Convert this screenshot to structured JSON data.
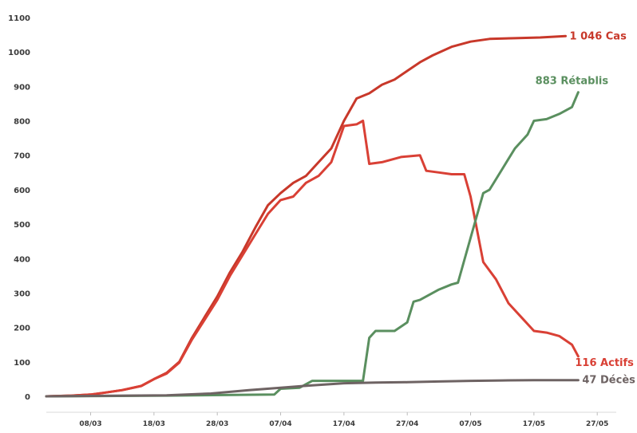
{
  "chart_data": {
    "type": "line",
    "ylim": [
      0,
      1100
    ],
    "yticks": [
      0,
      100,
      200,
      300,
      400,
      500,
      600,
      700,
      800,
      900,
      1000,
      1100
    ],
    "xticks": [
      "08/03",
      "18/03",
      "28/03",
      "07/04",
      "17/04",
      "27/04",
      "07/05",
      "17/05",
      "27/05"
    ],
    "grid": false,
    "x_start": "2020-03-01",
    "x_end": "2020-05-30",
    "series": [
      {
        "name": "Cas",
        "end_label": "1 046 Cas",
        "color": "#c8382a",
        "points": [
          [
            "2020-03-01",
            0
          ],
          [
            "2020-03-05",
            2
          ],
          [
            "2020-03-08",
            5
          ],
          [
            "2020-03-10",
            10
          ],
          [
            "2020-03-13",
            18
          ],
          [
            "2020-03-16",
            30
          ],
          [
            "2020-03-18",
            50
          ],
          [
            "2020-03-20",
            68
          ],
          [
            "2020-03-22",
            100
          ],
          [
            "2020-03-24",
            170
          ],
          [
            "2020-03-26",
            230
          ],
          [
            "2020-03-28",
            290
          ],
          [
            "2020-03-30",
            360
          ],
          [
            "2020-04-01",
            420
          ],
          [
            "2020-04-03",
            490
          ],
          [
            "2020-04-05",
            555
          ],
          [
            "2020-04-07",
            590
          ],
          [
            "2020-04-09",
            620
          ],
          [
            "2020-04-11",
            640
          ],
          [
            "2020-04-13",
            680
          ],
          [
            "2020-04-15",
            720
          ],
          [
            "2020-04-17",
            800
          ],
          [
            "2020-04-19",
            865
          ],
          [
            "2020-04-21",
            880
          ],
          [
            "2020-04-23",
            905
          ],
          [
            "2020-04-25",
            920
          ],
          [
            "2020-04-27",
            945
          ],
          [
            "2020-04-29",
            970
          ],
          [
            "2020-05-01",
            990
          ],
          [
            "2020-05-04",
            1015
          ],
          [
            "2020-05-07",
            1030
          ],
          [
            "2020-05-10",
            1038
          ],
          [
            "2020-05-14",
            1040
          ],
          [
            "2020-05-18",
            1042
          ],
          [
            "2020-05-22",
            1046
          ]
        ]
      },
      {
        "name": "Actifs",
        "end_label": "116 Actifs",
        "color": "#d94035",
        "points": [
          [
            "2020-03-01",
            0
          ],
          [
            "2020-03-05",
            2
          ],
          [
            "2020-03-08",
            5
          ],
          [
            "2020-03-10",
            10
          ],
          [
            "2020-03-13",
            18
          ],
          [
            "2020-03-16",
            30
          ],
          [
            "2020-03-18",
            50
          ],
          [
            "2020-03-20",
            66
          ],
          [
            "2020-03-22",
            98
          ],
          [
            "2020-03-24",
            165
          ],
          [
            "2020-03-26",
            222
          ],
          [
            "2020-03-28",
            280
          ],
          [
            "2020-03-30",
            350
          ],
          [
            "2020-04-01",
            410
          ],
          [
            "2020-04-03",
            470
          ],
          [
            "2020-04-05",
            530
          ],
          [
            "2020-04-07",
            570
          ],
          [
            "2020-04-09",
            580
          ],
          [
            "2020-04-11",
            620
          ],
          [
            "2020-04-13",
            640
          ],
          [
            "2020-04-15",
            680
          ],
          [
            "2020-04-17",
            785
          ],
          [
            "2020-04-19",
            790
          ],
          [
            "2020-04-20",
            800
          ],
          [
            "2020-04-21",
            675
          ],
          [
            "2020-04-23",
            680
          ],
          [
            "2020-04-26",
            695
          ],
          [
            "2020-04-29",
            700
          ],
          [
            "2020-04-30",
            655
          ],
          [
            "2020-05-02",
            650
          ],
          [
            "2020-05-04",
            645
          ],
          [
            "2020-05-06",
            645
          ],
          [
            "2020-05-07",
            580
          ],
          [
            "2020-05-09",
            390
          ],
          [
            "2020-05-11",
            340
          ],
          [
            "2020-05-13",
            270
          ],
          [
            "2020-05-15",
            230
          ],
          [
            "2020-05-17",
            190
          ],
          [
            "2020-05-19",
            185
          ],
          [
            "2020-05-21",
            175
          ],
          [
            "2020-05-23",
            150
          ],
          [
            "2020-05-24",
            116
          ]
        ]
      },
      {
        "name": "Rétablis",
        "end_label": "883 Rétablis",
        "color": "#5a8f5f",
        "points": [
          [
            "2020-03-01",
            0
          ],
          [
            "2020-03-20",
            2
          ],
          [
            "2020-04-06",
            5
          ],
          [
            "2020-04-07",
            22
          ],
          [
            "2020-04-10",
            25
          ],
          [
            "2020-04-12",
            45
          ],
          [
            "2020-04-15",
            45
          ],
          [
            "2020-04-17",
            45
          ],
          [
            "2020-04-20",
            45
          ],
          [
            "2020-04-21",
            170
          ],
          [
            "2020-04-22",
            190
          ],
          [
            "2020-04-25",
            190
          ],
          [
            "2020-04-27",
            215
          ],
          [
            "2020-04-28",
            275
          ],
          [
            "2020-04-29",
            280
          ],
          [
            "2020-05-02",
            310
          ],
          [
            "2020-05-04",
            325
          ],
          [
            "2020-05-05",
            330
          ],
          [
            "2020-05-07",
            460
          ],
          [
            "2020-05-09",
            590
          ],
          [
            "2020-05-10",
            600
          ],
          [
            "2020-05-12",
            660
          ],
          [
            "2020-05-14",
            720
          ],
          [
            "2020-05-16",
            760
          ],
          [
            "2020-05-17",
            800
          ],
          [
            "2020-05-19",
            805
          ],
          [
            "2020-05-21",
            820
          ],
          [
            "2020-05-23",
            840
          ],
          [
            "2020-05-24",
            883
          ]
        ]
      },
      {
        "name": "Décès",
        "end_label": "47 Décès",
        "color": "#6e6363",
        "points": [
          [
            "2020-03-01",
            0
          ],
          [
            "2020-03-20",
            3
          ],
          [
            "2020-03-27",
            8
          ],
          [
            "2020-04-02",
            18
          ],
          [
            "2020-04-07",
            25
          ],
          [
            "2020-04-12",
            32
          ],
          [
            "2020-04-17",
            38
          ],
          [
            "2020-04-22",
            40
          ],
          [
            "2020-04-27",
            41
          ],
          [
            "2020-05-02",
            43
          ],
          [
            "2020-05-07",
            45
          ],
          [
            "2020-05-12",
            46
          ],
          [
            "2020-05-17",
            47
          ],
          [
            "2020-05-24",
            47
          ]
        ]
      }
    ]
  }
}
